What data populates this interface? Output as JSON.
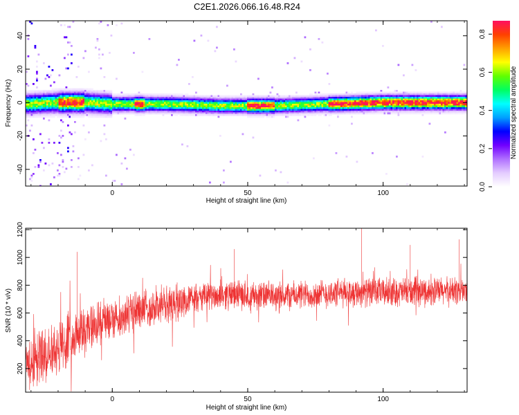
{
  "title": "C2E1.2026.066.16.48.R24",
  "chart_data": [
    {
      "type": "heatmap",
      "xlabel": "Height of straight line (km)",
      "ylabel": "Frequency (Hz)",
      "xlim": [
        -32,
        131
      ],
      "ylim": [
        -50,
        49
      ],
      "x_ticks": [
        0,
        50,
        100
      ],
      "y_ticks": [
        -40,
        -20,
        0,
        20,
        40
      ],
      "x_tick_labels": [
        "0",
        "50",
        "100"
      ],
      "y_tick_labels": [
        "-40",
        "-20",
        "0",
        "20",
        "40"
      ],
      "colorbar": {
        "label": "Normalized spectral amplitude",
        "range": [
          0,
          0.87
        ],
        "ticks": [
          0.0,
          0.2,
          0.4,
          0.6,
          0.8
        ],
        "tick_labels": [
          "0.0",
          "0.2",
          "0.4",
          "0.6",
          "0.8"
        ],
        "colors": [
          "#ffffff",
          "#e4ccff",
          "#b070ff",
          "#7000ff",
          "#0000ff",
          "#00a0ff",
          "#00ffff",
          "#00ff60",
          "#60ff00",
          "#ffff00",
          "#ffa000",
          "#ff4000",
          "#ff1060"
        ]
      },
      "ridge": {
        "center_hz": [
          {
            "x": -32,
            "y": -1
          },
          {
            "x": -20,
            "y": 0
          },
          {
            "x": -10,
            "y": 0
          },
          {
            "x": 0,
            "y": -1
          },
          {
            "x": 10,
            "y": -1
          },
          {
            "x": 20,
            "y": -1
          },
          {
            "x": 40,
            "y": -2
          },
          {
            "x": 60,
            "y": -2
          },
          {
            "x": 80,
            "y": -1
          },
          {
            "x": 100,
            "y": 0
          },
          {
            "x": 131,
            "y": 0
          }
        ],
        "strong_segments": [
          [
            -20,
            -10
          ],
          [
            8,
            12
          ],
          [
            50,
            60
          ],
          [
            80,
            131
          ]
        ]
      }
    },
    {
      "type": "line",
      "xlabel": "Height of straight line (km)",
      "ylabel": "SNR (10 * v/v)",
      "xlim": [
        -32,
        131
      ],
      "ylim": [
        30,
        1210
      ],
      "x_ticks": [
        0,
        50,
        100
      ],
      "y_ticks": [
        200,
        400,
        600,
        800,
        1000,
        1200
      ],
      "x_tick_labels": [
        "0",
        "50",
        "100"
      ],
      "y_tick_labels": [
        "200",
        "400",
        "600",
        "800",
        "1000",
        "1200"
      ],
      "color": "#ee3333",
      "trend": [
        {
          "x": -32,
          "y": 230
        },
        {
          "x": -20,
          "y": 360
        },
        {
          "x": -10,
          "y": 480
        },
        {
          "x": 0,
          "y": 560
        },
        {
          "x": 10,
          "y": 620
        },
        {
          "x": 20,
          "y": 660
        },
        {
          "x": 30,
          "y": 700
        },
        {
          "x": 40,
          "y": 730
        },
        {
          "x": 50,
          "y": 730
        },
        {
          "x": 60,
          "y": 720
        },
        {
          "x": 70,
          "y": 730
        },
        {
          "x": 80,
          "y": 740
        },
        {
          "x": 90,
          "y": 750
        },
        {
          "x": 100,
          "y": 750
        },
        {
          "x": 110,
          "y": 750
        },
        {
          "x": 120,
          "y": 755
        },
        {
          "x": 131,
          "y": 760
        }
      ],
      "peaks": [
        {
          "x": -13,
          "y": 1040
        },
        {
          "x": 45,
          "y": 1060
        },
        {
          "x": 92,
          "y": 1220
        },
        {
          "x": 110,
          "y": 1090
        },
        {
          "x": 128,
          "y": 1130
        }
      ]
    }
  ]
}
